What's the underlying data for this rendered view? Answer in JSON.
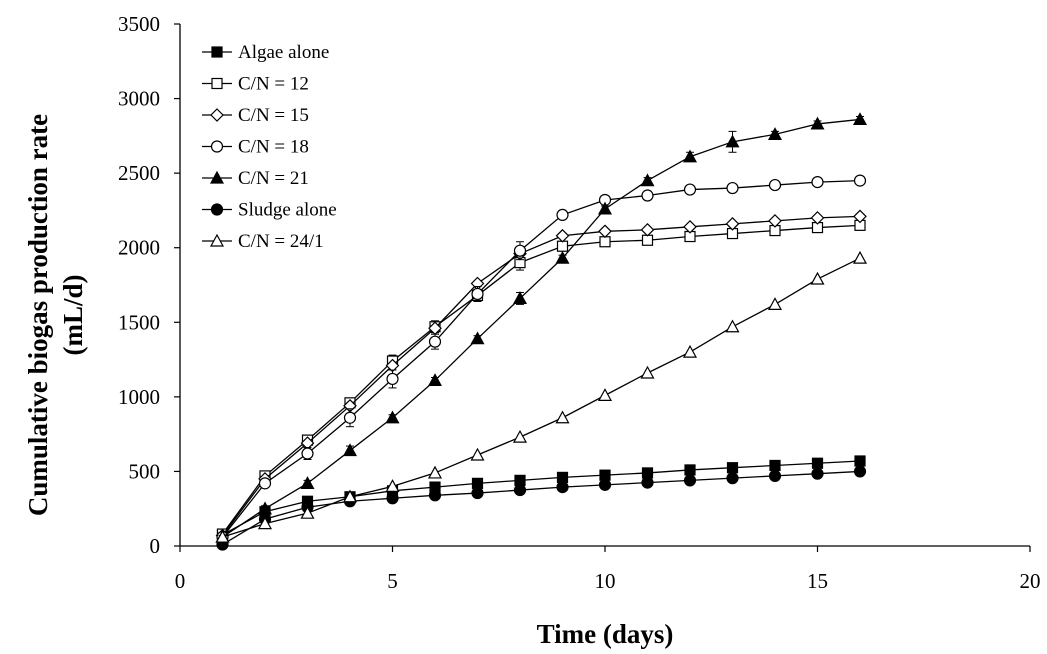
{
  "chart_data": {
    "type": "line",
    "title": "",
    "xlabel": "Time (days)",
    "ylabel_line1": "Cumulative biogas production rate",
    "ylabel_line2": "(mL/d)",
    "xlim": [
      0,
      20
    ],
    "ylim": [
      0,
      3500
    ],
    "xticks": [
      0,
      5,
      10,
      15,
      20
    ],
    "yticks": [
      0,
      500,
      1000,
      1500,
      2000,
      2500,
      3000,
      3500
    ],
    "grid": false,
    "legend_position": "top-left",
    "line_color": "#000000",
    "x": [
      1,
      2,
      3,
      4,
      5,
      6,
      7,
      8,
      9,
      10,
      11,
      12,
      13,
      14,
      15,
      16
    ],
    "series": [
      {
        "name": "Algae alone",
        "marker": "square-filled",
        "values": [
          75,
          230,
          300,
          330,
          370,
          395,
          420,
          440,
          460,
          475,
          490,
          510,
          525,
          540,
          555,
          570
        ]
      },
      {
        "name": "C/N = 12",
        "marker": "square-open",
        "values": [
          80,
          470,
          710,
          960,
          1240,
          1470,
          1680,
          1900,
          2010,
          2040,
          2050,
          2075,
          2095,
          2115,
          2135,
          2150
        ],
        "error": [
          15,
          25,
          25,
          25,
          40,
          40,
          40,
          50,
          30,
          20,
          20,
          20,
          30,
          30,
          30,
          30
        ]
      },
      {
        "name": "C/N = 15",
        "marker": "diamond-open",
        "values": [
          70,
          450,
          690,
          940,
          1210,
          1460,
          1760,
          1960,
          2080,
          2110,
          2120,
          2140,
          2160,
          2180,
          2200,
          2210
        ]
      },
      {
        "name": "C/N = 18",
        "marker": "circle-open",
        "values": [
          60,
          420,
          620,
          860,
          1120,
          1370,
          1690,
          1980,
          2220,
          2320,
          2350,
          2390,
          2400,
          2420,
          2440,
          2450
        ],
        "error": [
          10,
          20,
          40,
          60,
          60,
          50,
          50,
          60,
          20,
          20,
          20,
          20,
          20,
          20,
          20,
          20
        ]
      },
      {
        "name": "C/N = 21",
        "marker": "triangle-filled",
        "values": [
          60,
          250,
          420,
          640,
          860,
          1110,
          1390,
          1660,
          1930,
          2260,
          2450,
          2610,
          2710,
          2760,
          2830,
          2860
        ],
        "error": [
          10,
          20,
          20,
          30,
          20,
          20,
          20,
          40,
          20,
          20,
          20,
          30,
          70,
          20,
          20,
          20
        ]
      },
      {
        "name": "Sludge alone",
        "marker": "circle-filled",
        "values": [
          10,
          180,
          260,
          300,
          320,
          340,
          355,
          375,
          395,
          410,
          425,
          440,
          455,
          470,
          485,
          500
        ]
      },
      {
        "name": "C/N = 24/1",
        "marker": "triangle-open",
        "values": [
          60,
          150,
          220,
          330,
          400,
          490,
          610,
          730,
          860,
          1010,
          1160,
          1300,
          1470,
          1620,
          1790,
          1930
        ]
      }
    ]
  }
}
